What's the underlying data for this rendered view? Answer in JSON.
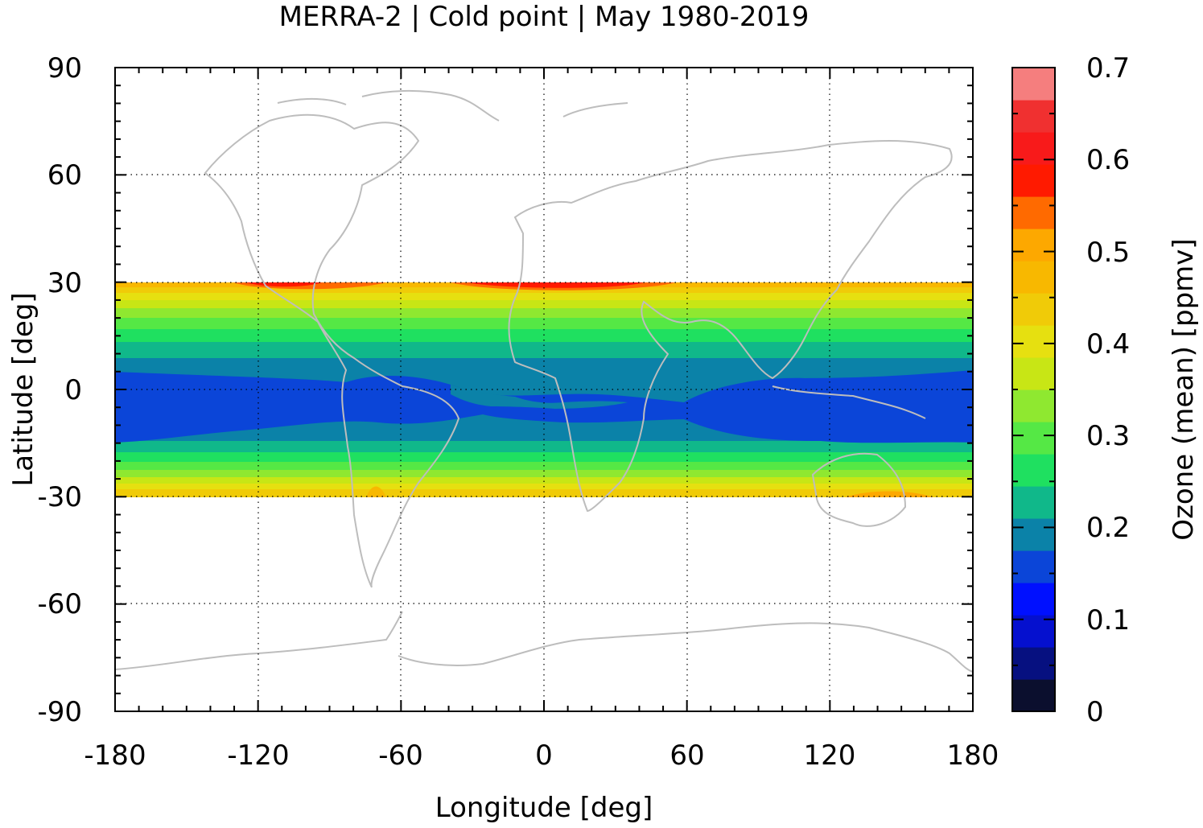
{
  "chart_data": {
    "type": "heatmap",
    "title": "MERRA-2 | Cold point | May 1980-2019",
    "xlabel": "Longitude [deg]",
    "ylabel": "Latitude [deg]",
    "colorbar_label": "Ozone (mean) [ppmv]",
    "xlim": [
      -180,
      180
    ],
    "ylim": [
      -90,
      90
    ],
    "xticks": [
      "-180",
      "-120",
      "-60",
      "0",
      "60",
      "120",
      "180"
    ],
    "yticks": [
      "90",
      "60",
      "30",
      "0",
      "-30",
      "-60",
      "-90"
    ],
    "colorbar_ticks": [
      "0.7",
      "0.6",
      "0.5",
      "0.4",
      "0.3",
      "0.2",
      "0.1",
      "0"
    ],
    "grid": true,
    "data_lat_range": [
      -30,
      30
    ],
    "colorbar": {
      "min": 0,
      "max": 0.7,
      "step": 0.035,
      "colors": [
        "#0b0f2e",
        "#061080",
        "#0510cf",
        "#0010ff",
        "#0b45d8",
        "#0b82a8",
        "#10b88a",
        "#1fe060",
        "#55e845",
        "#8fe830",
        "#c8e615",
        "#e6e010",
        "#f0cb08",
        "#f8b800",
        "#fda800",
        "#ff6a00",
        "#ff1a00",
        "#f81a1a",
        "#f03030",
        "#f57e7e",
        "#fdcbcb"
      ]
    },
    "description_values": {
      "equatorial_minimum_ppmv": 0.11,
      "subtropical_max_ppmv": 0.55
    }
  }
}
